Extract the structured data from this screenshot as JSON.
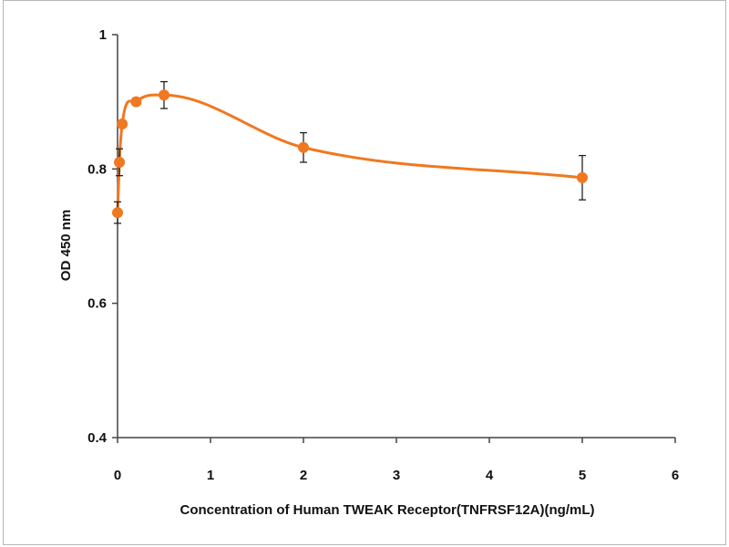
{
  "chart_data": {
    "type": "line",
    "title": "",
    "xlabel": "Concentration of Human TWEAK Receptor(TNFRSF12A)(ng/mL)",
    "ylabel": "OD 450 nm",
    "xlim": [
      0,
      6
    ],
    "ylim": [
      0.4,
      1
    ],
    "xticks": [
      0,
      1,
      2,
      3,
      4,
      5,
      6
    ],
    "yticks": [
      0.4,
      0.6,
      0.8,
      1
    ],
    "xtick_labels": [
      "0",
      "1",
      "2",
      "3",
      "4",
      "5",
      "6"
    ],
    "ytick_labels": [
      "0.4",
      "0.6",
      "0.8",
      "1"
    ],
    "grid": false,
    "series": [
      {
        "name": "OD 450 nm",
        "color": "#f07820",
        "smooth": true,
        "x": [
          0.0,
          0.02,
          0.05,
          0.2,
          0.5,
          2,
          5
        ],
        "y": [
          0.735,
          0.81,
          0.867,
          0.9,
          0.91,
          0.832,
          0.787
        ],
        "err": [
          0.016,
          0.02,
          0.0,
          0.0,
          0.02,
          0.022,
          0.033
        ]
      }
    ]
  }
}
